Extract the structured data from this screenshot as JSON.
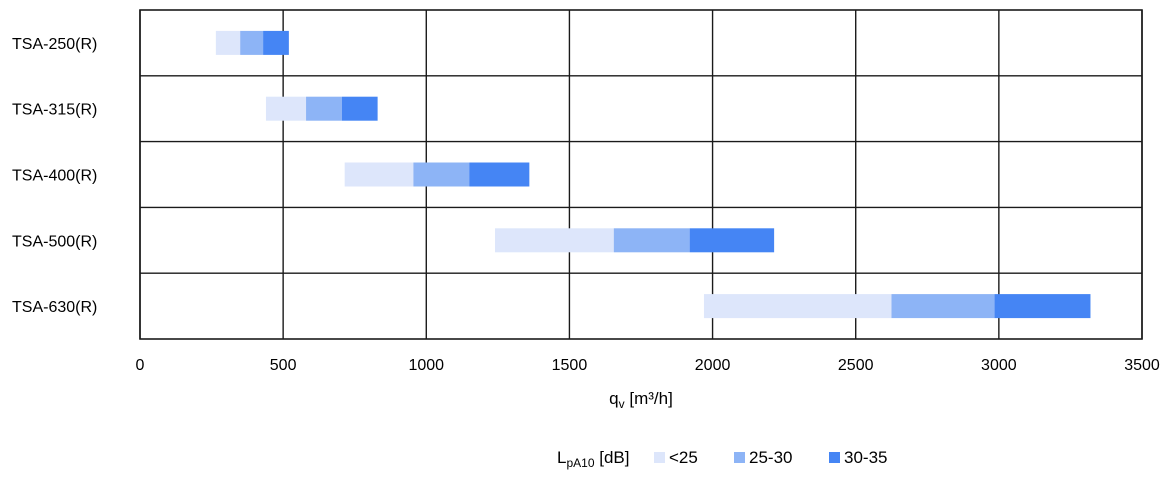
{
  "chart_data": {
    "type": "bar",
    "orientation": "horizontal",
    "stacked": true,
    "categories": [
      "TSA-250(R)",
      "TSA-315(R)",
      "TSA-400(R)",
      "TSA-500(R)",
      "TSA-630(R)"
    ],
    "series": [
      {
        "name": "<25",
        "color": "#dde6fb",
        "ranges": [
          [
            265,
            350
          ],
          [
            440,
            580
          ],
          [
            715,
            955
          ],
          [
            1240,
            1655
          ],
          [
            1970,
            2625
          ]
        ]
      },
      {
        "name": "25-30",
        "color": "#8db4f6",
        "ranges": [
          [
            350,
            430
          ],
          [
            580,
            705
          ],
          [
            955,
            1150
          ],
          [
            1655,
            1920
          ],
          [
            2625,
            2985
          ]
        ]
      },
      {
        "name": "30-35",
        "color": "#4585f4",
        "ranges": [
          [
            430,
            520
          ],
          [
            705,
            830
          ],
          [
            1150,
            1360
          ],
          [
            1920,
            2215
          ],
          [
            2985,
            3320
          ]
        ]
      }
    ],
    "xlim": [
      0,
      3500
    ],
    "xticks": [
      "0",
      "500",
      "1000",
      "1500",
      "2000",
      "2500",
      "3000",
      "3500"
    ],
    "xlabel": {
      "main": "q",
      "sub": "v",
      "unit": " [m³/h]"
    },
    "legend": {
      "title_main": "L",
      "title_sub": "pA10",
      "title_unit": " [dB]",
      "labels": [
        "<25",
        "25-30",
        "30-35"
      ],
      "placement": "bottom-center"
    },
    "grid": true
  }
}
